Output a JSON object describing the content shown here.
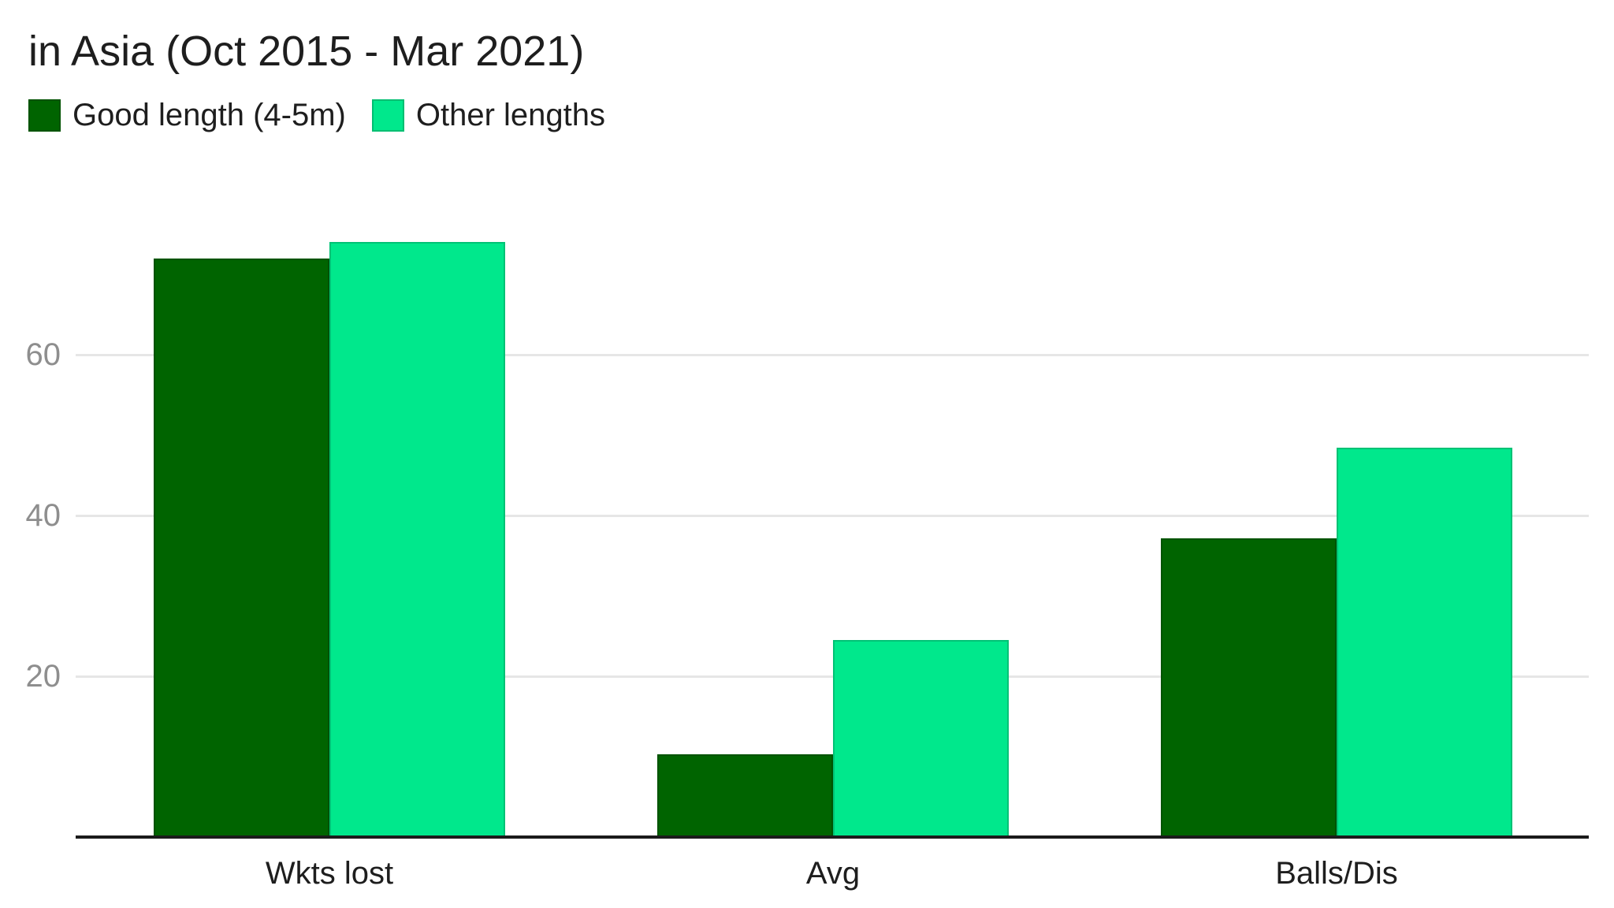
{
  "chart_data": {
    "type": "bar",
    "title": "in Asia (Oct 2015 - Mar 2021)",
    "categories": [
      "Wkts lost",
      "Avg",
      "Balls/Dis"
    ],
    "series": [
      {
        "name": "Good length (4-5m)",
        "color": "#006400",
        "values": [
          72,
          10.3,
          37.2
        ]
      },
      {
        "name": "Other lengths",
        "color": "#00e88c",
        "values": [
          74,
          24.5,
          48.4
        ]
      }
    ],
    "ylim": [
      0,
      80
    ],
    "yticks": [
      20,
      40,
      60
    ],
    "legend_position": "top",
    "grid": "horizontal",
    "colors": {
      "gridline": "#e6e6e6",
      "axis_line": "#1b1b1b",
      "tick_label": "#8e8e8e",
      "text": "#1e1e1e",
      "background": "#ffffff"
    }
  }
}
